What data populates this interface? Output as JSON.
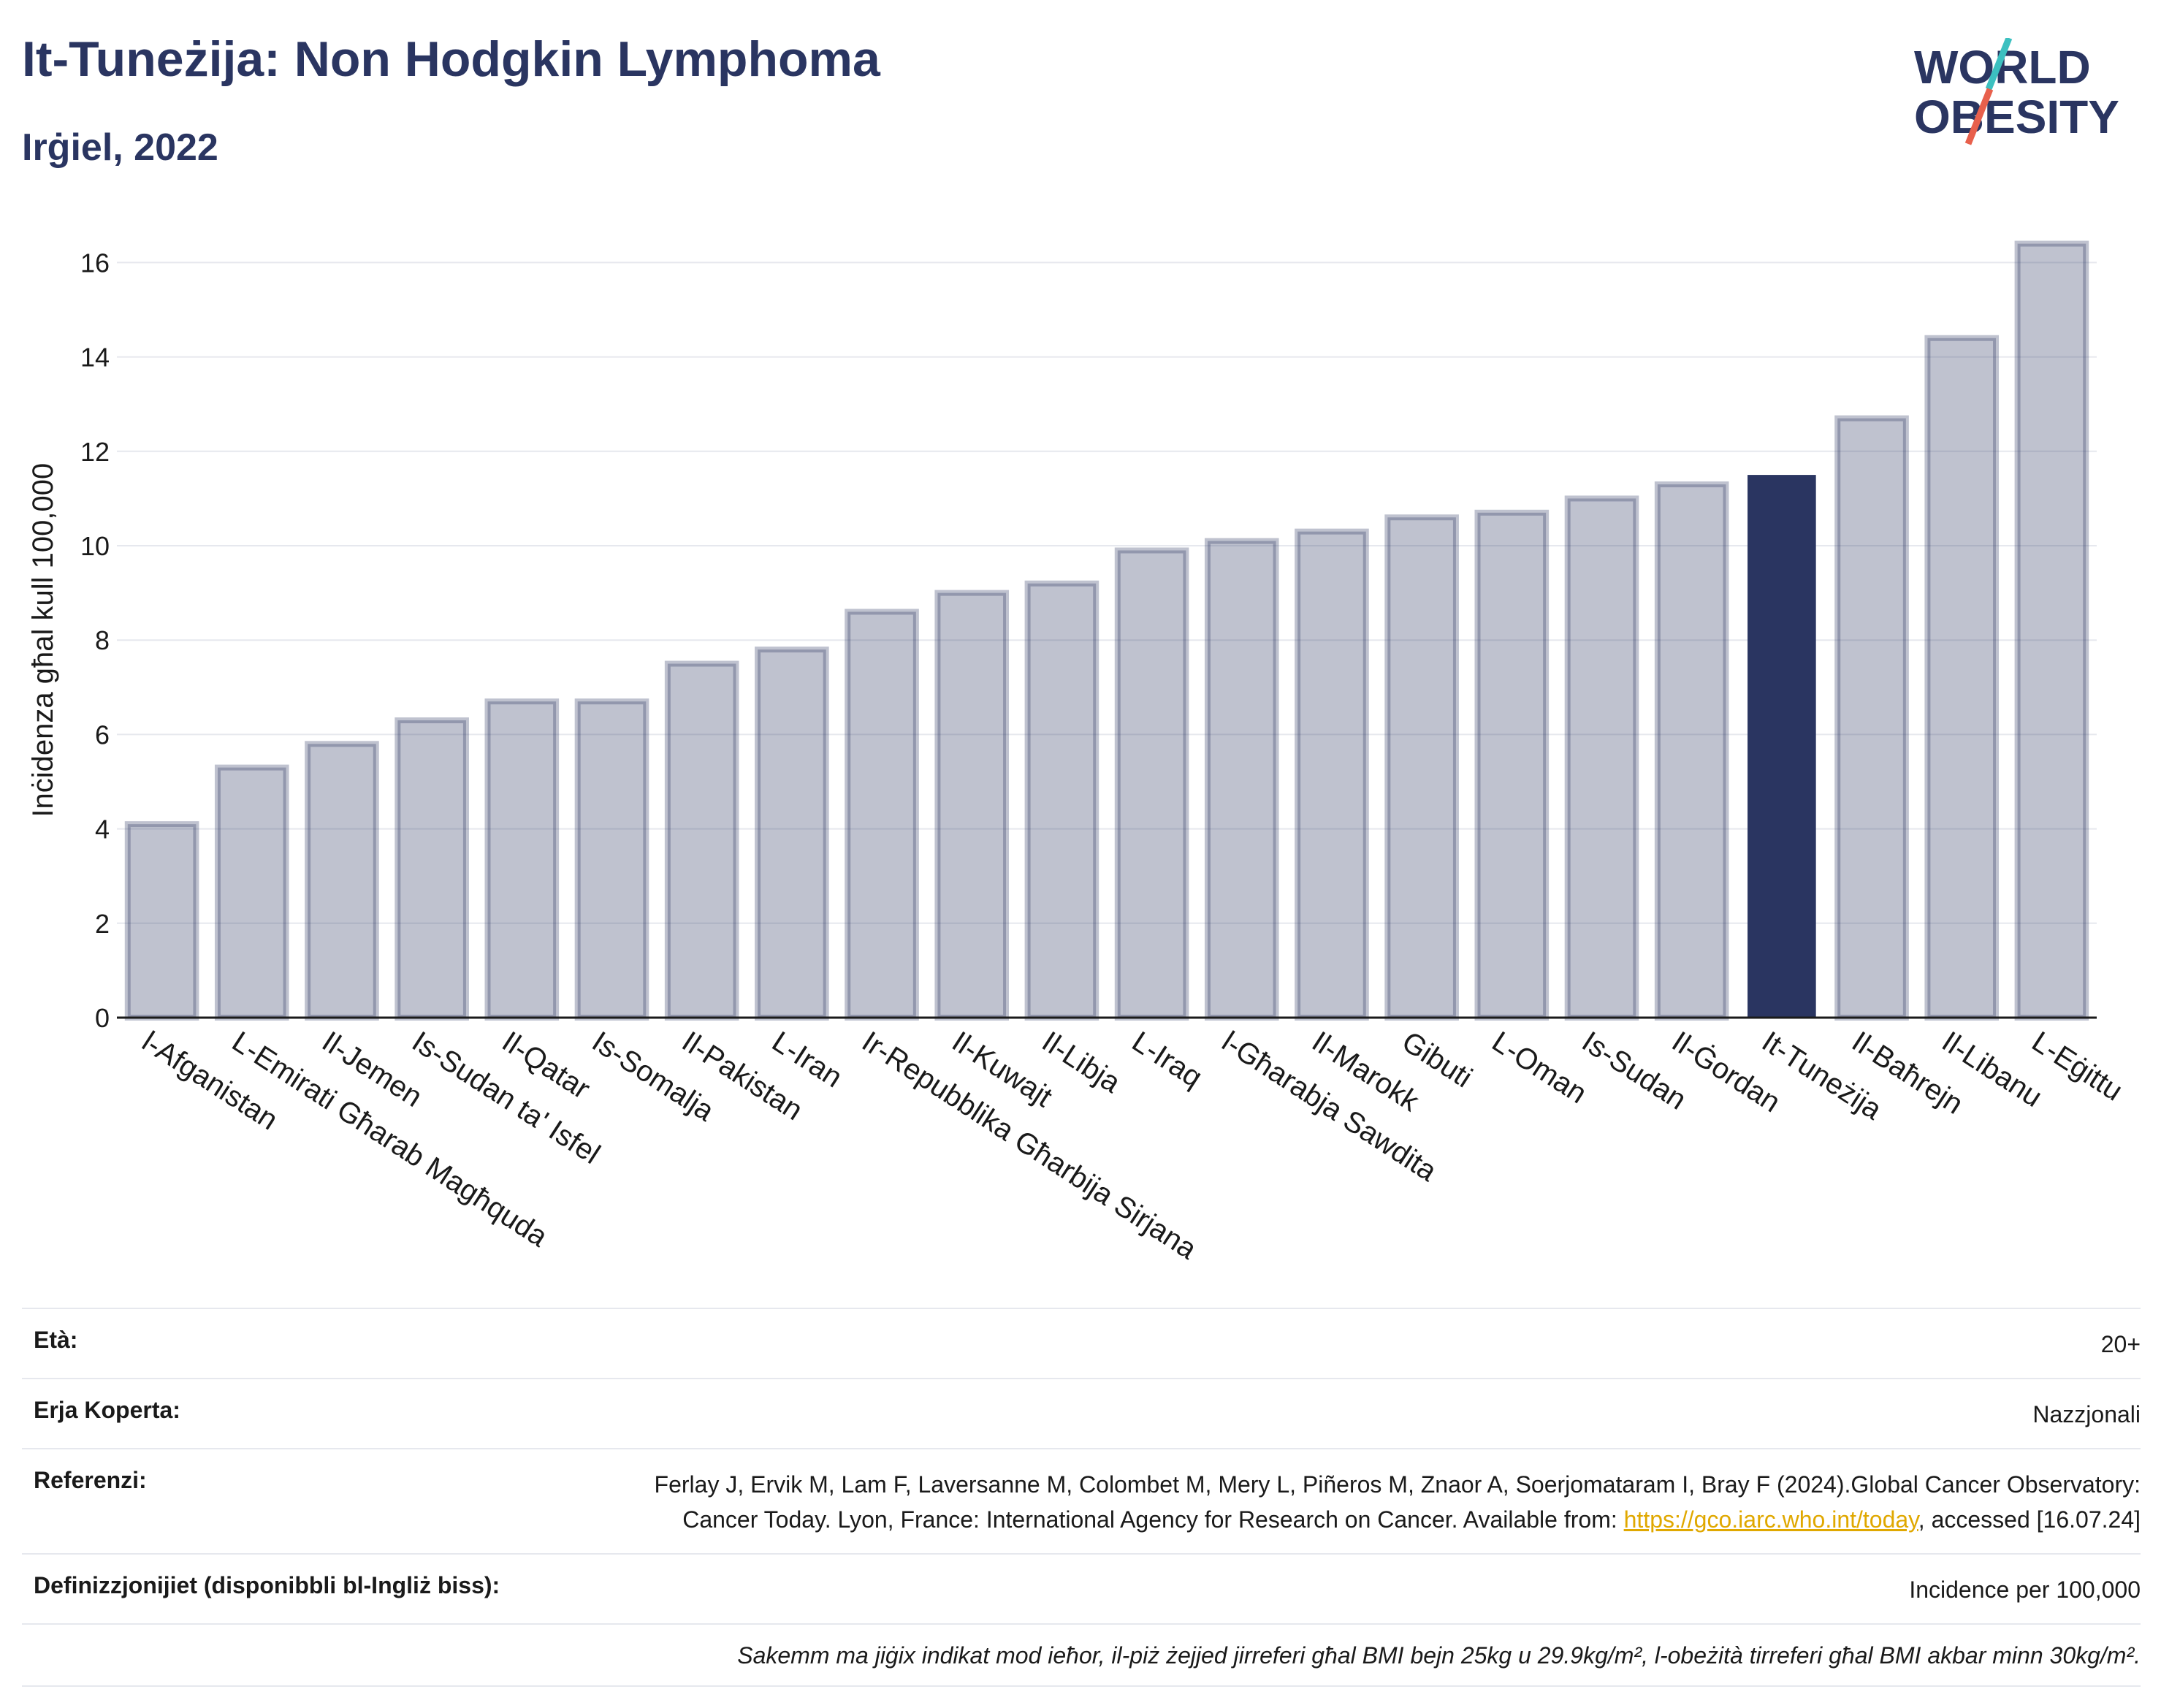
{
  "header": {
    "title": "It-Tuneżija: Non Hodgkin Lymphoma",
    "subtitle": "Irġiel, 2022"
  },
  "logo": {
    "line1": "WORLD",
    "line2": "OBESITY",
    "accent_teal": "#3cc0c0",
    "accent_red": "#e8604c"
  },
  "colors": {
    "bar_default": "#2a3561",
    "bar_highlight": "#2a3561",
    "text_dark": "#2a3561",
    "grid": "#e6e8ee"
  },
  "chart_data": {
    "type": "bar",
    "ylabel": "Inċidenza għal kull 100,000",
    "ylim": [
      0,
      17
    ],
    "yticks": [
      0,
      2,
      4,
      6,
      8,
      10,
      12,
      14,
      16
    ],
    "grid": true,
    "highlight": "It-Tuneżija",
    "categories": [
      "l-Afganistan",
      "L-Emirati Għarab Magħquda",
      "Il-Jemen",
      "Is-Sudan ta' Isfel",
      "Il-Qatar",
      "Is-Somalja",
      "Il-Pakistan",
      "L-Iran",
      "Ir-Repubblika Għarbija Sirjana",
      "Il-Kuwajt",
      "Il-Libja",
      "L-Iraq",
      "l-Għarabja Sawdita",
      "Il-Marokk",
      "Gibuti",
      "L-Oman",
      "Is-Sudan",
      "Il-Ġordan",
      "It-Tuneżija",
      "Il-Baħrejn",
      "Il-Libanu",
      "L-Eġittu"
    ],
    "values": [
      4.1,
      5.3,
      5.8,
      6.3,
      6.7,
      6.7,
      7.5,
      7.8,
      8.6,
      9.0,
      9.2,
      9.9,
      10.1,
      10.3,
      10.6,
      10.7,
      11.0,
      11.3,
      11.5,
      12.7,
      14.4,
      16.4
    ]
  },
  "info": {
    "age_label": "Età:",
    "age_value": "20+",
    "area_label": "Erja Koperta:",
    "area_value": "Nazzjonali",
    "ref_label": "Referenzi:",
    "ref_text1": "Ferlay J, Ervik M, Lam F, Laversanne M, Colombet M, Mery L, Piñeros M, Znaor A, Soerjomataram I, Bray F (2024).Global Cancer Observatory: Cancer Today. Lyon, France: International Agency for Research on Cancer. Available from: ",
    "ref_link": "https://gco.iarc.who.int/today",
    "ref_text2": ", accessed [16.07.24]",
    "def_label": "Definizzjonijiet (disponibbli bl-Ingliż biss):",
    "def_value": "Incidence per 100,000",
    "note": "Sakemm ma jiġix indikat mod ieħor, il-piż żejjed jirreferi għal BMI bejn 25kg u 29.9kg/m², l-obeżità tirreferi għal BMI akbar minn 30kg/m²."
  }
}
